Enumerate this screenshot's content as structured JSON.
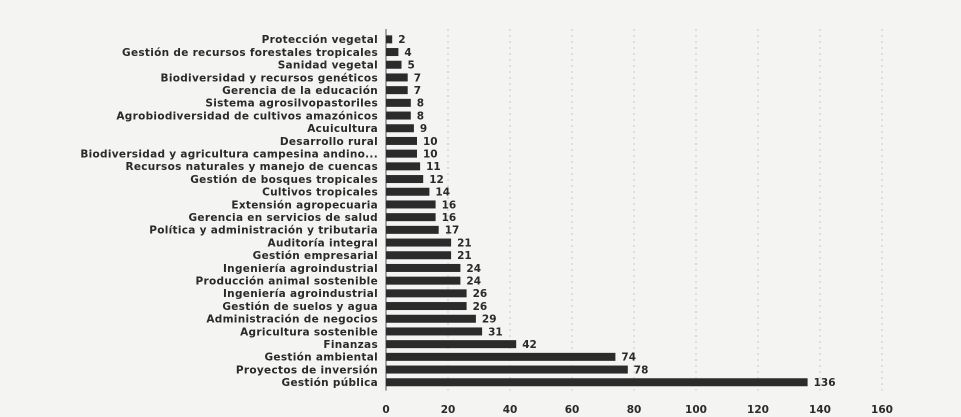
{
  "chart_data": {
    "type": "bar",
    "orientation": "horizontal",
    "categories": [
      "Protección vegetal",
      "Gestión de recursos forestales tropicales",
      "Sanidad vegetal",
      "Biodiversidad y recursos genéticos",
      "Gerencia de la educación",
      "Sistema agrosilvopastoriles",
      "Agrobiodiversidad de cultivos amazónicos",
      "Acuicultura",
      "Desarrollo rural",
      "Biodiversidad y agricultura campesina andino...",
      "Recursos naturales y manejo de cuencas",
      "Gestión de bosques tropicales",
      "Cultivos tropicales",
      "Extensión agropecuaria",
      "Gerencia en servicios de salud",
      "Política y administración y tributaria",
      "Auditoría integral",
      "Gestión empresarial",
      "Ingeniería agroindustrial",
      "Producción animal sostenible",
      "Ingeniería agroindustrial",
      "Gestión de suelos y agua",
      "Administración de negocios",
      "Agricultura sostenible",
      "Finanzas",
      "Gestión ambiental",
      "Proyectos de inversión",
      "Gestión pública"
    ],
    "values": [
      2,
      4,
      5,
      7,
      7,
      8,
      8,
      9,
      10,
      10,
      11,
      12,
      14,
      16,
      16,
      17,
      21,
      21,
      24,
      24,
      26,
      26,
      29,
      31,
      42,
      74,
      78,
      136
    ],
    "xlim": [
      0,
      160
    ],
    "xticks": [
      0,
      20,
      40,
      60,
      80,
      100,
      120,
      140,
      160
    ],
    "grid": true,
    "bar_color": "#2b2b2b"
  }
}
